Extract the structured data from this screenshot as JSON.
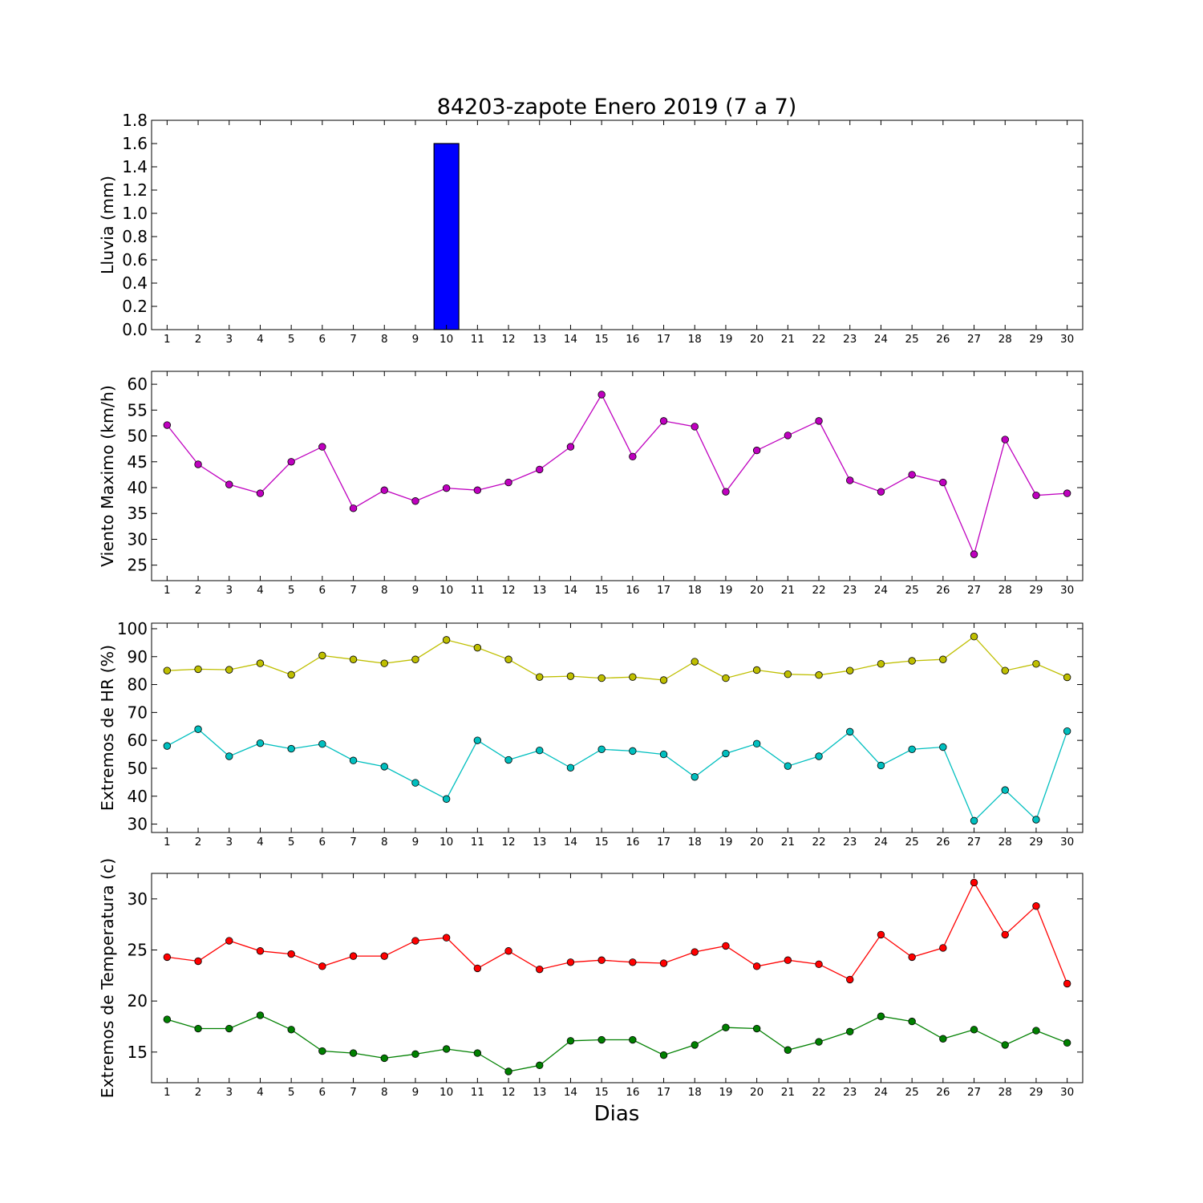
{
  "title": "84203-zapote Enero 2019  (7 a 7)",
  "xlabel": "Dias",
  "days": [
    1,
    2,
    3,
    4,
    5,
    6,
    7,
    8,
    9,
    10,
    11,
    12,
    13,
    14,
    15,
    16,
    17,
    18,
    19,
    20,
    21,
    22,
    23,
    24,
    25,
    26,
    27,
    28,
    29,
    30
  ],
  "colors": {
    "lluvia": "#0000ff",
    "viento": "#bf00bf",
    "hr_max": "#bfbf00",
    "hr_min": "#00bfbf",
    "temp_max": "#ff0000",
    "temp_min": "#008000"
  },
  "chart_data": [
    {
      "type": "bar",
      "ylabel": "Lluvia (mm)",
      "ylim": [
        0,
        1.8
      ],
      "yticks": [
        0.0,
        0.2,
        0.4,
        0.6,
        0.8,
        1.0,
        1.2,
        1.4,
        1.6,
        1.8
      ],
      "tick_decimals": 1,
      "x": [
        1,
        2,
        3,
        4,
        5,
        6,
        7,
        8,
        9,
        10,
        11,
        12,
        13,
        14,
        15,
        16,
        17,
        18,
        19,
        20,
        21,
        22,
        23,
        24,
        25,
        26,
        27,
        28,
        29,
        30
      ],
      "series": [
        {
          "color_key": "lluvia",
          "values": [
            0,
            0,
            0,
            0,
            0,
            0,
            0,
            0,
            0,
            1.6,
            0,
            0,
            0,
            0,
            0,
            0,
            0,
            0,
            0,
            0,
            0,
            0,
            0,
            0,
            0,
            0,
            0,
            0,
            0,
            0
          ]
        }
      ]
    },
    {
      "type": "line",
      "ylabel": "Viento Maximo (km/h)",
      "ylim": [
        22,
        62.5
      ],
      "yticks": [
        25,
        30,
        35,
        40,
        45,
        50,
        55,
        60
      ],
      "tick_decimals": 0,
      "x": [
        1,
        2,
        3,
        4,
        5,
        6,
        7,
        8,
        9,
        10,
        11,
        12,
        13,
        14,
        15,
        16,
        17,
        18,
        19,
        20,
        21,
        22,
        23,
        24,
        25,
        26,
        27,
        28,
        29,
        30
      ],
      "series": [
        {
          "color_key": "viento",
          "values": [
            52.1,
            44.5,
            40.6,
            38.9,
            45.0,
            47.9,
            36.0,
            39.5,
            37.4,
            39.9,
            39.5,
            41.0,
            43.5,
            47.9,
            58.0,
            46.0,
            52.9,
            51.8,
            39.2,
            47.2,
            50.1,
            52.9,
            41.4,
            39.2,
            42.5,
            41.0,
            27.1,
            49.3,
            38.5,
            38.9
          ]
        }
      ]
    },
    {
      "type": "line",
      "ylabel": "Extremos de HR (%)",
      "ylim": [
        27,
        102
      ],
      "yticks": [
        30,
        40,
        50,
        60,
        70,
        80,
        90,
        100
      ],
      "tick_decimals": 0,
      "x": [
        1,
        2,
        3,
        4,
        5,
        6,
        7,
        8,
        9,
        10,
        11,
        12,
        13,
        14,
        15,
        16,
        17,
        18,
        19,
        20,
        21,
        22,
        23,
        24,
        25,
        26,
        27,
        28,
        29,
        30
      ],
      "series": [
        {
          "color_key": "hr_max",
          "values": [
            85.0,
            85.5,
            85.3,
            87.6,
            83.5,
            90.4,
            89.0,
            87.6,
            89.0,
            96.0,
            93.2,
            89.0,
            82.7,
            83.0,
            82.3,
            82.7,
            81.6,
            88.2,
            82.3,
            85.2,
            83.7,
            83.4,
            85.0,
            87.4,
            88.5,
            89.0,
            97.2,
            85.0,
            87.4,
            82.6
          ]
        },
        {
          "color_key": "hr_min",
          "values": [
            58.0,
            64.0,
            54.3,
            59.0,
            57.0,
            58.7,
            52.8,
            50.6,
            44.8,
            39.0,
            60.0,
            53.0,
            56.4,
            50.2,
            56.8,
            56.2,
            55.0,
            46.9,
            55.3,
            58.8,
            50.8,
            54.3,
            63.1,
            51.0,
            56.8,
            57.6,
            31.2,
            42.2,
            31.6,
            63.3
          ]
        }
      ]
    },
    {
      "type": "line",
      "ylabel": "Extremos de Temperatura (c)",
      "ylim": [
        12,
        32.5
      ],
      "yticks": [
        15,
        20,
        25,
        30
      ],
      "tick_decimals": 0,
      "x": [
        1,
        2,
        3,
        4,
        5,
        6,
        7,
        8,
        9,
        10,
        11,
        12,
        13,
        14,
        15,
        16,
        17,
        18,
        19,
        20,
        21,
        22,
        23,
        24,
        25,
        26,
        27,
        28,
        29,
        30
      ],
      "series": [
        {
          "color_key": "temp_max",
          "values": [
            24.3,
            23.9,
            25.9,
            24.9,
            24.6,
            23.4,
            24.4,
            24.4,
            25.9,
            26.2,
            23.2,
            24.9,
            23.1,
            23.8,
            24.0,
            23.8,
            23.7,
            24.8,
            25.4,
            23.4,
            24.0,
            23.6,
            22.1,
            26.5,
            24.3,
            25.2,
            31.6,
            26.5,
            29.3,
            21.7
          ]
        },
        {
          "color_key": "temp_min",
          "values": [
            18.2,
            17.3,
            17.3,
            18.6,
            17.2,
            15.1,
            14.9,
            14.4,
            14.8,
            15.3,
            14.9,
            13.1,
            13.7,
            16.1,
            16.2,
            16.2,
            14.7,
            15.7,
            17.4,
            17.3,
            15.2,
            16.0,
            17.0,
            18.5,
            18.0,
            16.3,
            17.2,
            15.7,
            17.1,
            15.9
          ]
        }
      ]
    }
  ]
}
